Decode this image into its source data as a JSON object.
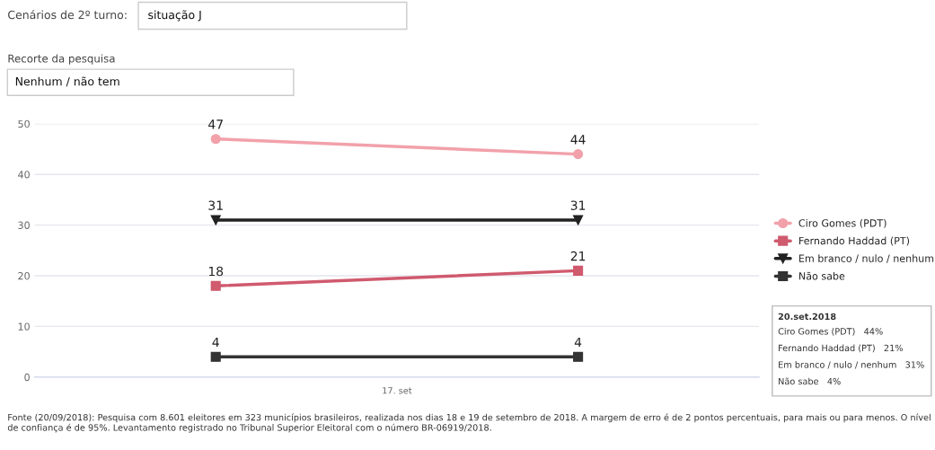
{
  "chart_data": {
    "type": "line",
    "categories": [
      null,
      null
    ],
    "series": [
      {
        "name": "Ciro Gomes (PDT)",
        "color": "#f2a1ab",
        "values": [
          47,
          44
        ],
        "marker": "circle"
      },
      {
        "name": "Fernando Haddad (PT)",
        "color": "#d05a6e",
        "values": [
          18,
          21
        ],
        "marker": "square"
      },
      {
        "name": "Em branco / nulo / nenhum",
        "color": "#222222",
        "values": [
          31,
          31
        ],
        "marker": "triangle"
      },
      {
        "name": "Não sabe",
        "color": "#333333",
        "values": [
          4,
          4
        ],
        "marker": "square"
      }
    ],
    "ylim": [
      0,
      50
    ],
    "yticks": [
      0,
      10,
      20,
      30,
      40,
      50
    ],
    "grid": "y",
    "legend": "right",
    "data_labels": true,
    "line_style": "solid",
    "annotations": [
      "Cenários de 2º turno:",
      "situação J",
      "Recorte da pesquisa",
      "Nenhum / não tem",
      "20.set.2018",
      "Ciro Gomes (PDT)   44%",
      "Fernando Haddad (PT)   21%",
      "Em branco / nulo / nenhum   31%",
      "Não sabe   4%",
      "17. set",
      "Fonte (20/09/2018): Pesquisa com 8.601 eleitores em 323 municípios brasileiros, realizada nos dias 18 e 19 de setembro de 2018. A margem de erro é de 2 pontos percentuais, para mais ou para menos. O nível de confiança é de 95%. Levantamento registrado no Tribunal Superior Eleitoral com o número BR-06919/2018."
    ]
  }
}
